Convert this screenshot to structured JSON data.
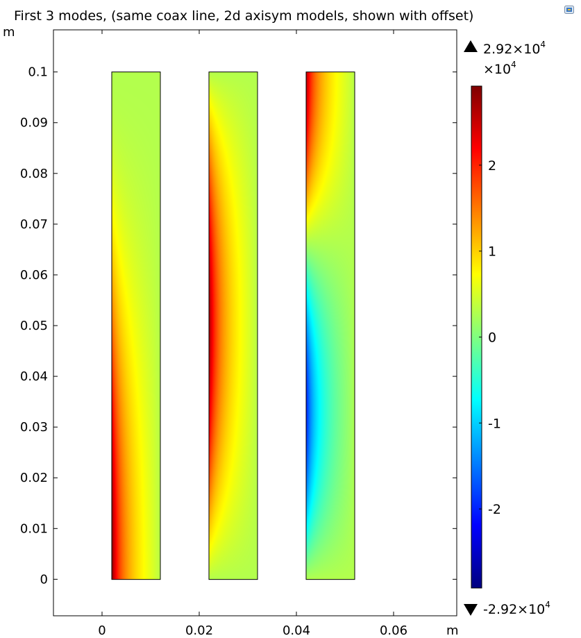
{
  "chart_data": {
    "type": "heatmap",
    "title": "First 3 modes, (same coax line, 2d axisym models, shown with offset)",
    "xlabel": "m",
    "ylabel": "m",
    "xlim": [
      -0.01,
      0.073
    ],
    "ylim": [
      -0.0072,
      0.1083
    ],
    "xticks": [
      "0",
      "0.02",
      "0.04",
      "0.06"
    ],
    "xtick_values": [
      0,
      0.02,
      0.04,
      0.06
    ],
    "yticks": [
      "0",
      "0.01",
      "0.02",
      "0.03",
      "0.04",
      "0.05",
      "0.06",
      "0.07",
      "0.08",
      "0.09",
      "0.1"
    ],
    "ytick_values": [
      0,
      0.01,
      0.02,
      0.03,
      0.04,
      0.05,
      0.06,
      0.07,
      0.08,
      0.09,
      0.1
    ],
    "regions": [
      {
        "mode": 1,
        "x_range": [
          0.002,
          0.012
        ],
        "y_range": [
          0,
          0.1
        ]
      },
      {
        "mode": 2,
        "x_range": [
          0.022,
          0.032
        ],
        "y_range": [
          0,
          0.1
        ]
      },
      {
        "mode": 3,
        "x_range": [
          0.042,
          0.052
        ],
        "y_range": [
          0,
          0.1
        ]
      }
    ],
    "colorbar": {
      "colormap": "rainbow",
      "min": -29200,
      "max": 29200,
      "max_label": "2.92×10",
      "max_exp": "4",
      "min_label": "-2.92×10",
      "min_exp": "4",
      "scale_label": "×10",
      "scale_exp": "4",
      "ticks": [
        "2",
        "1",
        "0",
        "-1",
        "-2"
      ],
      "tick_values": [
        2,
        1,
        0,
        -1,
        -2
      ]
    },
    "grid": false
  }
}
